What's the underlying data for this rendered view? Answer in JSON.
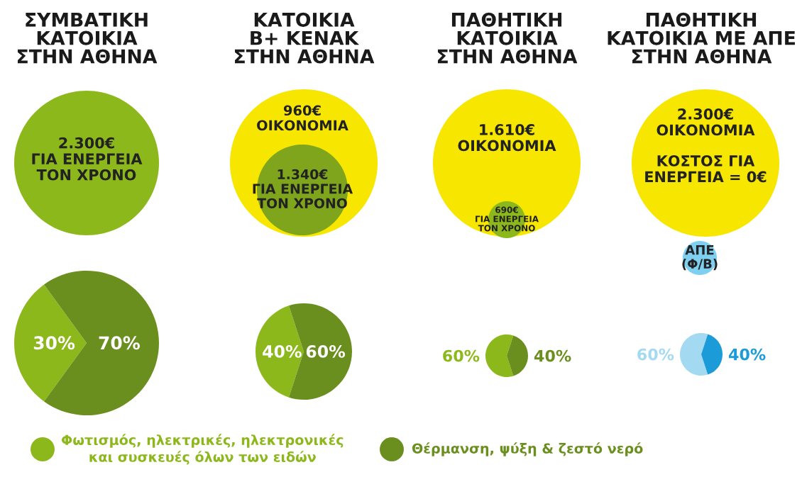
{
  "chart_data": [
    {
      "type": "other",
      "title": "ΣΥΜΒΑΤΙΚΗ\nΚΑΤΟΙΚΙΑ\nΣΤΗΝ ΑΘΗΝΑ",
      "annotations": [
        "2.300€\nΓΙΑ ΕΝΕΡΓΕΙΑ\nΤΟΝ ΧΡΟΝΟ"
      ]
    },
    {
      "type": "other",
      "title": "ΚΑΤΟΙΚΙΑ\nΒ+ ΚΕΝΑΚ\nΣΤΗΝ ΑΘΗΝΑ",
      "annotations": [
        "960€\nΟΙΚΟΝΟΜΙΑ",
        "1.340€\nΓΙΑ ΕΝΕΡΓΕΙΑ\nΤΟΝ ΧΡΟΝΟ"
      ]
    },
    {
      "type": "other",
      "title": "ΠΑΘΗΤΙΚΗ\nΚΑΤΟΙΚΙΑ\nΣΤΗΝ ΑΘΗΝΑ",
      "annotations": [
        "1.610€\nΟΙΚΟΝΟΜΙΑ",
        "690€\nΓΙΑ ΕΝΕΡΓΕΙΑ\nΤΟΝ ΧΡΟΝΟ"
      ]
    },
    {
      "type": "other",
      "title": "ΠΑΘΗΤΙΚΗ\nΚΑΤΟΙΚΙΑ ΜΕ ΑΠΕ\nΣΤΗΝ ΑΘΗΝΑ",
      "annotations": [
        "2.300€\nΟΙΚΟΝΟΜΙΑ",
        "ΚΟΣΤΟΣ ΓΙΑ\nΕΝΕΡΓΕΙΑ = 0€",
        "ΑΠΕ\n(Φ/Β)"
      ]
    },
    {
      "type": "pie",
      "categories": [
        "Φωτισμός, ηλεκτρικές, ηλεκτρονικές\nκαι συσκευές όλων των ειδών",
        "Θέρμανση, ψύξη & ζεστό νερό"
      ],
      "values": [
        30,
        70
      ],
      "colors": [
        "#8cb81c",
        "#6b8f1f"
      ],
      "value_labels": [
        "30%",
        "70%"
      ],
      "legend": "bottom"
    },
    {
      "type": "pie",
      "categories": [
        null,
        null
      ],
      "values": [
        40,
        60
      ],
      "colors": [
        "#8cb81c",
        "#6b8f1f"
      ],
      "value_labels": [
        "40%",
        "60%"
      ]
    },
    {
      "type": "pie",
      "categories": [
        null,
        null
      ],
      "values": [
        60,
        40
      ],
      "colors": [
        "#8cb81c",
        "#6b8f1f"
      ],
      "value_labels": [
        "60%",
        "40%"
      ]
    },
    {
      "type": "pie",
      "categories": [
        null,
        null
      ],
      "values": [
        60,
        40
      ],
      "colors": [
        "#a3daf2",
        "#1b9bd7"
      ],
      "value_labels": [
        "60%",
        "40%"
      ]
    }
  ]
}
